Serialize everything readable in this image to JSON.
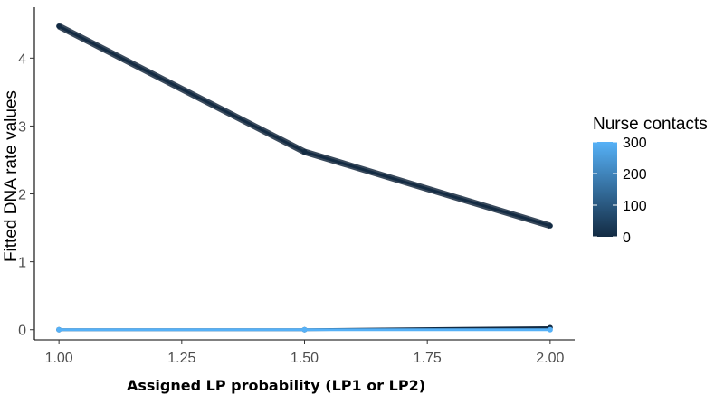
{
  "chart_data": {
    "type": "line",
    "title": "",
    "xlabel": "Assigned LP probability (LP1 or LP2)",
    "ylabel": "Fitted DNA rate values",
    "xlim": [
      0.95,
      2.05
    ],
    "ylim": [
      -0.15,
      4.75
    ],
    "x_ticks": [
      1.0,
      1.25,
      1.5,
      1.75,
      2.0
    ],
    "x_tick_labels": [
      "1.00",
      "1.25",
      "1.50",
      "1.75",
      "2.00"
    ],
    "y_ticks": [
      0,
      1,
      2,
      3,
      4
    ],
    "y_tick_labels": [
      "0",
      "1",
      "2",
      "3",
      "4"
    ],
    "grid": false,
    "series": [
      {
        "nurse_contacts": 0,
        "color": "#132b43",
        "x": [
          1.0,
          1.5,
          2.0
        ],
        "y": [
          4.47,
          2.62,
          1.53
        ]
      },
      {
        "nurse_contacts": 0,
        "color": "#132b43",
        "x": [
          1.0,
          1.5,
          2.0
        ],
        "y": [
          0.0,
          0.0,
          0.03
        ]
      },
      {
        "nurse_contacts": 300,
        "color": "#56b1f7",
        "x": [
          1.0,
          1.5,
          2.0
        ],
        "y": [
          0.0,
          0.0,
          0.0
        ]
      }
    ],
    "legend": {
      "title": "Nurse contacts",
      "position": "right",
      "colorbar": {
        "min": 0,
        "max": 300,
        "ticks": [
          0,
          100,
          200,
          300
        ],
        "tick_labels": [
          "0",
          "100",
          "200",
          "300"
        ],
        "low_color": "#132b43",
        "high_color": "#56b1f7"
      }
    }
  }
}
